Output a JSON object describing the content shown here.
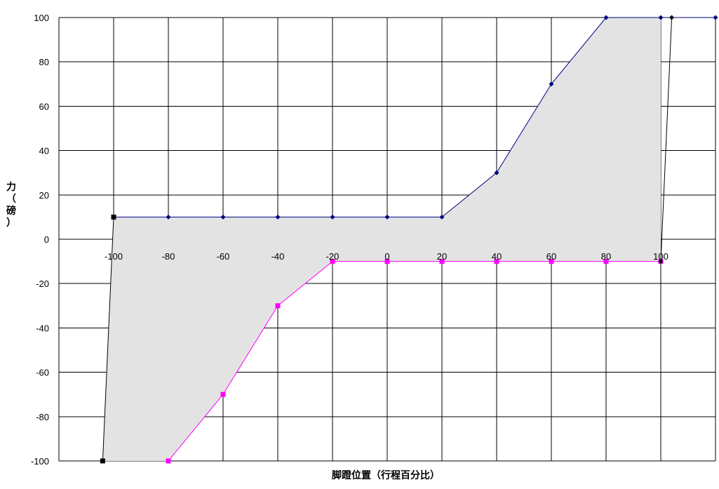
{
  "chart_data": {
    "type": "line",
    "title": "",
    "xlabel": "脚蹬位置（行程百分比）",
    "ylabel": "力（磅）",
    "xlim": [
      -120,
      120
    ],
    "ylim": [
      -100,
      100
    ],
    "x_ticks": [
      "-100",
      "-80",
      "-60",
      "-40",
      "-20",
      "0",
      "20",
      "40",
      "60",
      "80",
      "100"
    ],
    "y_ticks": [
      "100",
      "80",
      "60",
      "40",
      "20",
      "0",
      "-20",
      "-40",
      "-60",
      "-80",
      "-100"
    ],
    "grid": true,
    "legend": "none",
    "series": [
      {
        "color": "#000080",
        "marker": "diamond",
        "points": [
          [
            -100,
            10
          ],
          [
            -80,
            10
          ],
          [
            -60,
            10
          ],
          [
            -40,
            10
          ],
          [
            -20,
            10
          ],
          [
            0,
            10
          ],
          [
            20,
            10
          ],
          [
            40,
            30
          ],
          [
            60,
            70
          ],
          [
            80,
            100
          ],
          [
            100,
            100
          ],
          [
            120,
            100
          ]
        ]
      },
      {
        "color": "#ff00ff",
        "marker": "square",
        "points": [
          [
            -80,
            -100
          ],
          [
            -60,
            -70
          ],
          [
            -40,
            -30
          ],
          [
            -20,
            -10
          ],
          [
            0,
            -10
          ],
          [
            20,
            -10
          ],
          [
            40,
            -10
          ],
          [
            60,
            -10
          ],
          [
            80,
            -10
          ],
          [
            100,
            -10
          ]
        ]
      },
      {
        "color": "#000000",
        "marker": "square",
        "points": [
          [
            -104,
            -100
          ],
          [
            -100,
            10
          ]
        ]
      },
      {
        "color": "#000000",
        "marker": "diamond",
        "points": [
          [
            100,
            -10
          ],
          [
            104,
            100
          ]
        ]
      }
    ],
    "shaded_region": {
      "fill": "#e3e3e3",
      "points": [
        [
          -104,
          -100
        ],
        [
          -100,
          10
        ],
        [
          -80,
          10
        ],
        [
          -60,
          10
        ],
        [
          -40,
          10
        ],
        [
          -20,
          10
        ],
        [
          0,
          10
        ],
        [
          20,
          10
        ],
        [
          40,
          30
        ],
        [
          60,
          70
        ],
        [
          80,
          100
        ],
        [
          100,
          100
        ],
        [
          100,
          -10
        ],
        [
          80,
          -10
        ],
        [
          60,
          -10
        ],
        [
          40,
          -10
        ],
        [
          20,
          -10
        ],
        [
          0,
          -10
        ],
        [
          -20,
          -10
        ],
        [
          -40,
          -30
        ],
        [
          -60,
          -70
        ],
        [
          -80,
          -100
        ]
      ]
    }
  }
}
